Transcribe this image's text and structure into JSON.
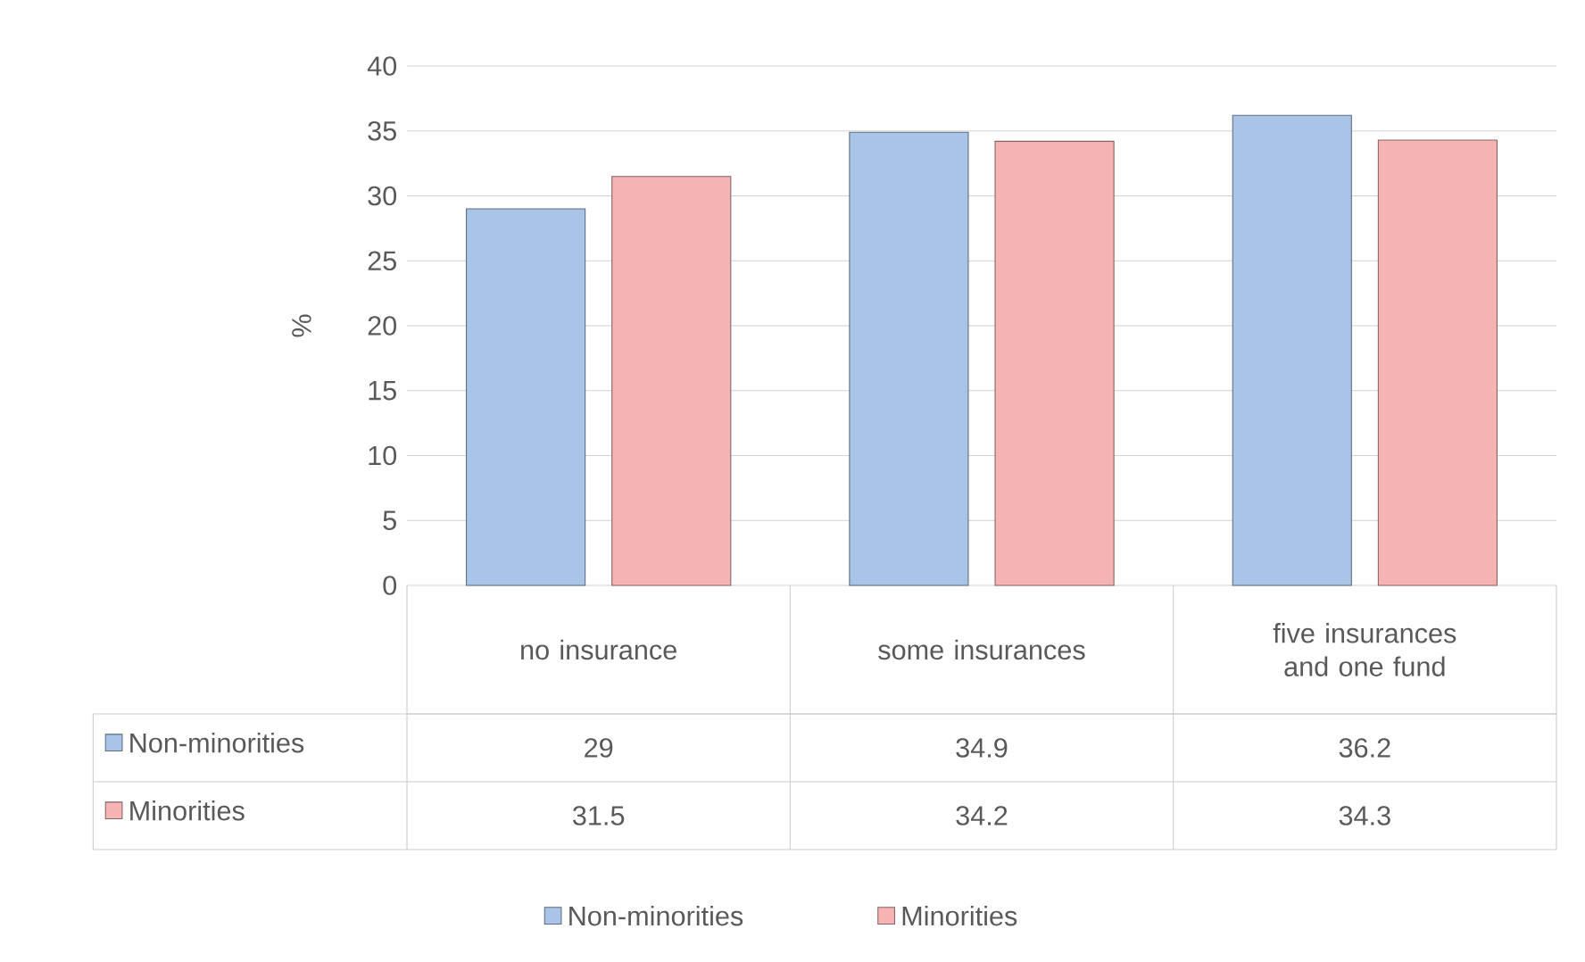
{
  "chart_data": {
    "type": "bar",
    "ylabel": "%",
    "categories": [
      "no insurance",
      "some insurances",
      "five insurances and one fund"
    ],
    "series": [
      {
        "name": "Non-minorities",
        "color": "#a9c4e6",
        "values": [
          29,
          34.9,
          36.2
        ]
      },
      {
        "name": "Minorities",
        "color": "#f6b3b3",
        "values": [
          31.5,
          34.2,
          34.3
        ]
      }
    ],
    "ylim": [
      0,
      40
    ],
    "yticks": [
      0,
      5,
      10,
      15,
      20,
      25,
      30,
      35,
      40
    ],
    "grid": "y",
    "legend": "bottom",
    "data_labels": true
  }
}
